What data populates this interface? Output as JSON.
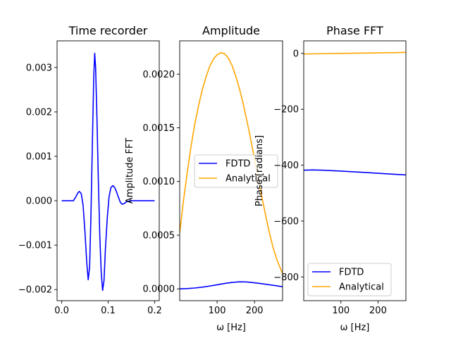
{
  "figure": {
    "background": "#ffffff"
  },
  "chart_data": [
    {
      "type": "line",
      "title": "Time recorder",
      "xlabel": "",
      "ylabel": "",
      "xlim": [
        -0.01,
        0.21
      ],
      "ylim": [
        -0.00225,
        0.0036
      ],
      "xticks": [
        0.0,
        0.1,
        0.2
      ],
      "xtick_labels": [
        "0.0",
        "0.1",
        "0.2"
      ],
      "yticks": [
        -0.002,
        -0.001,
        0.0,
        0.001,
        0.002,
        0.003
      ],
      "ytick_labels": [
        "−0.002",
        "−0.001",
        "0.000",
        "0.001",
        "0.002",
        "0.003"
      ],
      "grid": false,
      "legend": null,
      "series": [
        {
          "color": "#0000ff",
          "x": [
            0.0,
            0.02,
            0.025,
            0.03,
            0.035,
            0.038,
            0.042,
            0.046,
            0.05,
            0.054,
            0.057,
            0.06,
            0.063,
            0.066,
            0.069,
            0.071,
            0.073,
            0.076,
            0.079,
            0.082,
            0.085,
            0.088,
            0.091,
            0.094,
            0.098,
            0.102,
            0.106,
            0.11,
            0.114,
            0.118,
            0.122,
            0.126,
            0.13,
            0.135,
            0.14,
            0.15,
            0.16,
            0.2
          ],
          "y": [
            0.0,
            0.0,
            0.0,
            8e-05,
            0.00018,
            0.00021,
            0.00016,
            -0.0001,
            -0.0007,
            -0.0014,
            -0.00178,
            -0.0015,
            -0.0003,
            0.0013,
            0.0028,
            0.00332,
            0.003,
            0.0018,
            0.0004,
            -0.0008,
            -0.0016,
            -0.00202,
            -0.0018,
            -0.0011,
            -0.0004,
            0.0001,
            0.0003,
            0.00034,
            0.0003,
            0.0002,
            8e-05,
            -3e-05,
            -8e-05,
            -6e-05,
            -2e-05,
            0.0,
            0.0,
            0.0
          ]
        }
      ]
    },
    {
      "type": "line",
      "title": "Amplitude",
      "xlabel": "ω [Hz]",
      "ylabel": "Amplitude FFT",
      "xlim": [
        0,
        275
      ],
      "ylim": [
        -0.00011,
        0.00231
      ],
      "xticks": [
        100,
        200
      ],
      "xtick_labels": [
        "100",
        "200"
      ],
      "yticks": [
        0.0,
        0.0005,
        0.001,
        0.0015,
        0.002
      ],
      "ytick_labels": [
        "0.0000",
        "0.0005",
        "0.0010",
        "0.0015",
        "0.0020"
      ],
      "grid": false,
      "legend": {
        "position": "center-right",
        "entries": [
          "FDTD",
          "Analytical"
        ]
      },
      "series": [
        {
          "name": "FDTD",
          "color": "#0000ff",
          "x": [
            0,
            20,
            40,
            60,
            80,
            100,
            120,
            140,
            160,
            180,
            200,
            220,
            240,
            260,
            275
          ],
          "y": [
            0.0,
            3e-06,
            8e-06,
            1.6e-05,
            2.6e-05,
            3.8e-05,
            5e-05,
            6e-05,
            6.6e-05,
            6.4e-05,
            5.7e-05,
            4.8e-05,
            3.8e-05,
            2.8e-05,
            2e-05
          ]
        },
        {
          "name": "Analytical",
          "color": "#ffa500",
          "x": [
            0,
            10,
            20,
            30,
            40,
            50,
            60,
            70,
            80,
            90,
            100,
            110,
            120,
            130,
            140,
            150,
            160,
            170,
            180,
            190,
            200,
            210,
            220,
            230,
            240,
            250,
            260,
            275
          ],
          "y": [
            0.00052,
            0.00082,
            0.00108,
            0.00132,
            0.00153,
            0.0017,
            0.00185,
            0.00197,
            0.00207,
            0.00214,
            0.00218,
            0.0022,
            0.00219,
            0.00215,
            0.00208,
            0.00198,
            0.00186,
            0.00172,
            0.00156,
            0.00139,
            0.00121,
            0.00103,
            0.00085,
            0.00068,
            0.00052,
            0.00038,
            0.00027,
            0.00014
          ]
        }
      ]
    },
    {
      "type": "line",
      "title": "Phase FFT",
      "xlabel": "ω [Hz]",
      "ylabel": "Phase [radians]",
      "xlim": [
        0,
        275
      ],
      "ylim": [
        -885,
        45
      ],
      "xticks": [
        100,
        200
      ],
      "xtick_labels": [
        "100",
        "200"
      ],
      "yticks": [
        0,
        -200,
        -400,
        -600,
        -800
      ],
      "ytick_labels": [
        "0",
        "−200",
        "−400",
        "−600",
        "−800"
      ],
      "grid": false,
      "legend": {
        "position": "lower-left",
        "entries": [
          "FDTD",
          "Analytical"
        ]
      },
      "series": [
        {
          "name": "FDTD",
          "color": "#0000ff",
          "x": [
            0,
            25,
            50,
            100,
            150,
            200,
            250,
            275
          ],
          "y": [
            -418,
            -417,
            -418,
            -421,
            -425,
            -429,
            -433,
            -435
          ]
        },
        {
          "name": "Analytical",
          "color": "#ffa500",
          "x": [
            0,
            50,
            100,
            150,
            200,
            250,
            275
          ],
          "y": [
            -2,
            -1,
            0,
            1,
            2,
            3,
            4
          ]
        }
      ]
    }
  ]
}
